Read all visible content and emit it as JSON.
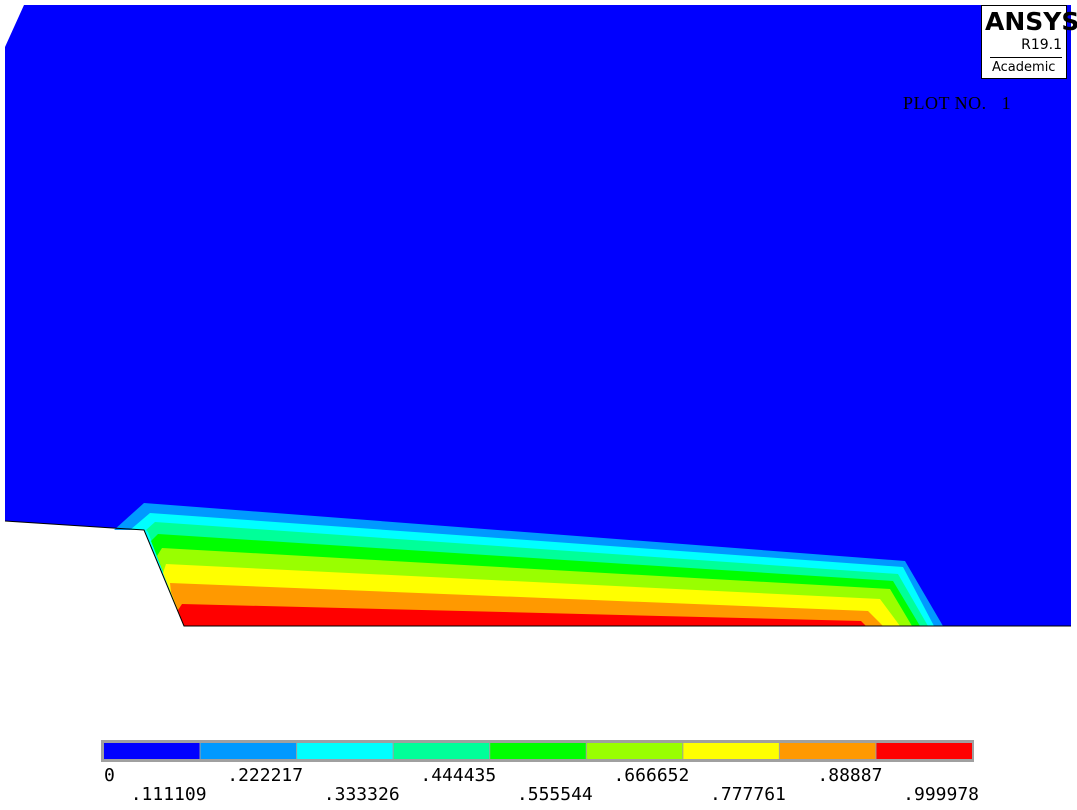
{
  "logo": {
    "brand": "ANSYS",
    "revision": "R19.1",
    "edition": "Academic"
  },
  "plot_number_label": "PLOT NO.   1",
  "contour_colors": [
    "#0000ff",
    "#0099ff",
    "#00ffff",
    "#00ff99",
    "#00ff00",
    "#99ff00",
    "#ffff00",
    "#ff9900",
    "#ff0000"
  ],
  "legend": {
    "colors": [
      "#0000ff",
      "#0099ff",
      "#00ffff",
      "#00ff99",
      "#00ff00",
      "#99ff00",
      "#ffff00",
      "#ff9900",
      "#ff0000"
    ],
    "labels": [
      "0",
      ".111109",
      ".222217",
      ".333326",
      ".444435",
      ".555544",
      ".666652",
      ".777761",
      ".88887",
      ".999978"
    ]
  }
}
